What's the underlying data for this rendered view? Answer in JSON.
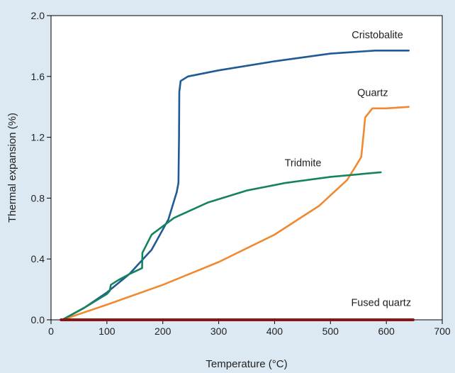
{
  "chart_data": {
    "type": "line",
    "xlabel": "Temperature (°C)",
    "ylabel": "Thermal expansion (%)",
    "xlim": [
      0,
      700
    ],
    "ylim": [
      0.0,
      2.0
    ],
    "xticks": [
      0,
      100,
      200,
      300,
      400,
      500,
      600,
      700
    ],
    "yticks": [
      0.0,
      0.4,
      0.8,
      1.2,
      1.6,
      2.0
    ],
    "ytick_labels": [
      "0.0",
      "0.4",
      "0.8",
      "1.2",
      "1.6",
      "2.0"
    ],
    "grid": false,
    "legend": "none",
    "series": [
      {
        "name": "Cristobalite",
        "color": "#1f5a96",
        "points": [
          [
            20,
            0.0
          ],
          [
            60,
            0.08
          ],
          [
            100,
            0.18
          ],
          [
            140,
            0.3
          ],
          [
            180,
            0.46
          ],
          [
            210,
            0.66
          ],
          [
            225,
            0.84
          ],
          [
            228,
            0.9
          ],
          [
            229,
            1.2
          ],
          [
            229.5,
            1.5
          ],
          [
            232,
            1.57
          ],
          [
            245,
            1.6
          ],
          [
            300,
            1.64
          ],
          [
            400,
            1.7
          ],
          [
            500,
            1.75
          ],
          [
            580,
            1.77
          ],
          [
            640,
            1.77
          ]
        ]
      },
      {
        "name": "Quartz",
        "color": "#f0892f",
        "points": [
          [
            20,
            0.0
          ],
          [
            100,
            0.1
          ],
          [
            200,
            0.23
          ],
          [
            300,
            0.38
          ],
          [
            400,
            0.56
          ],
          [
            480,
            0.75
          ],
          [
            530,
            0.92
          ],
          [
            555,
            1.07
          ],
          [
            560,
            1.25
          ],
          [
            562,
            1.33
          ],
          [
            575,
            1.39
          ],
          [
            600,
            1.39
          ],
          [
            640,
            1.4
          ]
        ]
      },
      {
        "name": "Tridmite",
        "color": "#16835f",
        "points": [
          [
            20,
            0.0
          ],
          [
            60,
            0.08
          ],
          [
            100,
            0.17
          ],
          [
            105,
            0.19
          ],
          [
            107,
            0.23
          ],
          [
            120,
            0.26
          ],
          [
            140,
            0.3
          ],
          [
            163,
            0.34
          ],
          [
            163.5,
            0.44
          ],
          [
            180,
            0.56
          ],
          [
            220,
            0.67
          ],
          [
            280,
            0.77
          ],
          [
            350,
            0.85
          ],
          [
            420,
            0.9
          ],
          [
            500,
            0.94
          ],
          [
            560,
            0.96
          ],
          [
            590,
            0.97
          ]
        ]
      },
      {
        "name": "Fused quartz",
        "color": "#8b1515",
        "points": [
          [
            18,
            0.0
          ],
          [
            648,
            0.0
          ]
        ]
      }
    ],
    "annotations": [
      {
        "text": "Cristobalite",
        "x": 538,
        "y": 1.85
      },
      {
        "text": "Quartz",
        "x": 548,
        "y": 1.47
      },
      {
        "text": "Tridmite",
        "x": 418,
        "y": 1.01
      },
      {
        "text": "Fused quartz",
        "x": 537,
        "y": 0.09
      }
    ]
  }
}
